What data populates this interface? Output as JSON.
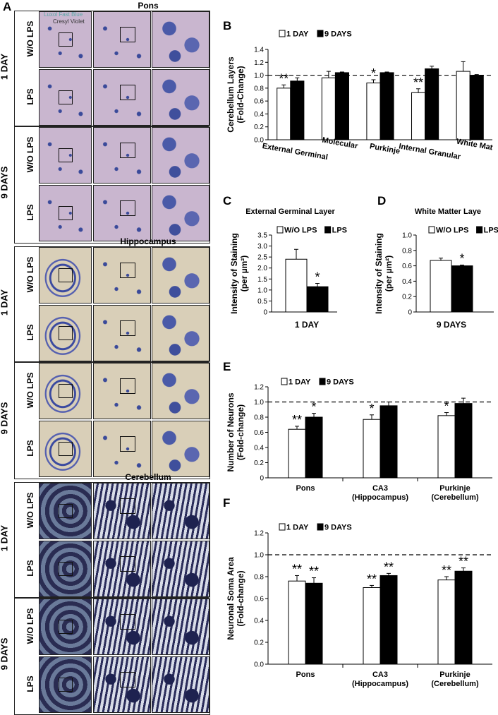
{
  "panel_a": {
    "letter": "A",
    "stain_legend": [
      "Luxol Fast Blue",
      "Cresyl Violet"
    ],
    "groups": [
      {
        "title": "Pons",
        "time_labels": [
          "1 DAY",
          "9 DAYS"
        ],
        "row_labels": [
          "W/O LPS",
          "LPS",
          "W/O LPS",
          "LPS"
        ]
      },
      {
        "title": "Hippocampus",
        "time_labels": [
          "1 DAY",
          "9 DAYS"
        ],
        "row_labels": [
          "W/O LPS",
          "LPS",
          "W/O LPS",
          "LPS"
        ]
      },
      {
        "title": "Cerebellum",
        "time_labels": [
          "1 DAY",
          "9 DAYS"
        ],
        "row_labels": [
          "W/O LPS",
          "LPS",
          "W/O LPS",
          "LPS"
        ]
      }
    ]
  },
  "colors": {
    "bar_open": "#ffffff",
    "bar_filled": "#000000",
    "pons_bg": "#c9b6cf",
    "hippo_bg": "#d9cfb8",
    "cereb_bg": "#2e2f5a",
    "stain": "#2b3f8f"
  },
  "chart_data": [
    {
      "id": "B",
      "letter": "B",
      "type": "bar",
      "ylabel": "Cerebellum Layers (Fold-Change)",
      "ylim": [
        0,
        1.4
      ],
      "yticks": [
        "0.0",
        "0.2",
        "0.4",
        "0.6",
        "0.8",
        "1.0",
        "1.2",
        "1.4"
      ],
      "reference_line": 1.0,
      "legend": "top-left",
      "categories": [
        "External Germinal",
        "Molecular",
        "Purkinje",
        "Internal Granular",
        "White Mat"
      ],
      "series": [
        {
          "name": "1 DAY",
          "values": [
            0.8,
            0.96,
            0.88,
            0.73,
            1.06
          ],
          "errors": [
            0.05,
            0.1,
            0.05,
            0.06,
            0.15
          ],
          "sig": [
            "**",
            "",
            "*",
            "**",
            ""
          ]
        },
        {
          "name": "9 DAYS",
          "values": [
            0.91,
            1.04,
            1.04,
            1.1,
            1.0
          ],
          "errors": [
            0.05,
            0.01,
            0.01,
            0.04,
            0.01
          ],
          "sig": [
            "",
            "",
            "",
            "",
            ""
          ]
        }
      ]
    },
    {
      "id": "C",
      "letter": "C",
      "type": "bar",
      "title": "External Germinal Layer",
      "ylabel": "Intensity of Staining (per µm²)",
      "xlabel": "1 DAY",
      "ylim": [
        0,
        3.5
      ],
      "yticks": [
        "0",
        "0.5",
        "1.0",
        "1.5",
        "2.0",
        "2.5",
        "3.0",
        "3.5"
      ],
      "legend": "top",
      "series": [
        {
          "name": "W/O LPS",
          "values": [
            2.4
          ],
          "errors": [
            0.45
          ],
          "sig": [
            ""
          ]
        },
        {
          "name": "LPS",
          "values": [
            1.15
          ],
          "errors": [
            0.15
          ],
          "sig": [
            "*"
          ]
        }
      ]
    },
    {
      "id": "D",
      "letter": "D",
      "type": "bar",
      "title": "White Matter Laye",
      "ylabel": "Intensity of Staining (per µm²)",
      "xlabel": "9 DAYS",
      "ylim": [
        0,
        1.0
      ],
      "yticks": [
        "0",
        "0.2",
        "0.4",
        "0.6",
        "0.8",
        "1.0"
      ],
      "legend": "top",
      "series": [
        {
          "name": "W/O LPS",
          "values": [
            0.67
          ],
          "errors": [
            0.03
          ],
          "sig": [
            ""
          ]
        },
        {
          "name": "LPS",
          "values": [
            0.6
          ],
          "errors": [
            0.01
          ],
          "sig": [
            "*"
          ]
        }
      ]
    },
    {
      "id": "E",
      "letter": "E",
      "type": "bar",
      "ylabel": "Number of Neurons (Fold-change)",
      "ylim": [
        0,
        1.2
      ],
      "yticks": [
        "0",
        "0.2",
        "0.4",
        "0.6",
        "0.8",
        "1.0",
        "1.2"
      ],
      "reference_line": 1.0,
      "legend": "top-left",
      "categories": [
        "Pons",
        "CA3 (Hippocampus)",
        "Purkinje (Cerebellum)"
      ],
      "series": [
        {
          "name": "1 DAY",
          "values": [
            0.64,
            0.77,
            0.82
          ],
          "errors": [
            0.04,
            0.06,
            0.04
          ],
          "sig": [
            "**",
            "*",
            "*"
          ]
        },
        {
          "name": "9 DAYS",
          "values": [
            0.8,
            0.95,
            0.98
          ],
          "errors": [
            0.05,
            0.05,
            0.07
          ],
          "sig": [
            "*",
            "",
            ""
          ]
        }
      ]
    },
    {
      "id": "F",
      "letter": "F",
      "type": "bar",
      "ylabel": "Neuronal Soma Area (Fold-change)",
      "ylim": [
        0,
        1.2
      ],
      "yticks": [
        "0.0",
        "0.2",
        "0.4",
        "0.6",
        "0.8",
        "1.0",
        "1.2"
      ],
      "reference_line": 1.0,
      "legend": "top-left",
      "categories": [
        "Pons",
        "CA3 (Hippocampus)",
        "Purkinje (Cerebellum)"
      ],
      "series": [
        {
          "name": "1 DAY",
          "values": [
            0.76,
            0.7,
            0.77
          ],
          "errors": [
            0.05,
            0.02,
            0.03
          ],
          "sig": [
            "**",
            "**",
            "**"
          ]
        },
        {
          "name": "9 DAYS",
          "values": [
            0.74,
            0.81,
            0.85
          ],
          "errors": [
            0.05,
            0.02,
            0.03
          ],
          "sig": [
            "**",
            "**",
            "**"
          ]
        }
      ]
    }
  ]
}
